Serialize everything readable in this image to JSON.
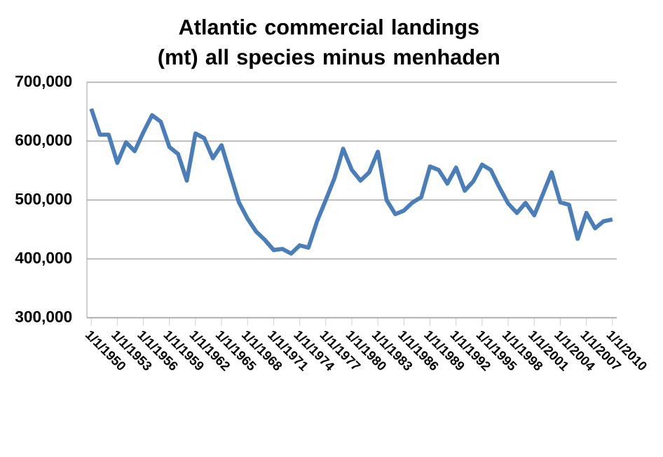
{
  "chart_data": {
    "type": "line",
    "title": "Atlantic commercial landings (mt) all species minus menhaden",
    "categories": [
      "1/1/1950",
      null,
      null,
      "1/1/1953",
      null,
      null,
      "1/1/1956",
      null,
      null,
      "1/1/1959",
      null,
      null,
      "1/1/1962",
      null,
      null,
      "1/1/1965",
      null,
      null,
      "1/1/1968",
      null,
      null,
      "1/1/1971",
      null,
      null,
      "1/1/1974",
      null,
      null,
      "1/1/1977",
      null,
      null,
      "1/1/1980",
      null,
      null,
      "1/1/1983",
      null,
      null,
      "1/1/1986",
      null,
      null,
      "1/1/1989",
      null,
      null,
      "1/1/1992",
      null,
      null,
      "1/1/1995",
      null,
      null,
      "1/1/1998",
      null,
      null,
      "1/1/2001",
      null,
      null,
      "1/1/2004",
      null,
      null,
      "1/1/2007",
      null,
      null,
      "1/1/2010"
    ],
    "series": [
      {
        "color": "#4a7ebb",
        "values": [
          655000,
          611000,
          611000,
          563000,
          598000,
          583000,
          615000,
          644000,
          633000,
          590000,
          578000,
          533000,
          613000,
          605000,
          571000,
          593000,
          544000,
          496000,
          468000,
          446000,
          432000,
          415000,
          417000,
          409000,
          423000,
          419000,
          464000,
          500000,
          537000,
          587000,
          551000,
          533000,
          547000,
          582000,
          500000,
          476000,
          482000,
          496000,
          505000,
          557000,
          551000,
          528000,
          555000,
          516000,
          532000,
          560000,
          551000,
          521000,
          494000,
          478000,
          495000,
          474000,
          510000,
          547000,
          496000,
          492000,
          434000,
          478000,
          452000,
          464000,
          467000
        ]
      }
    ],
    "ylim": [
      300000,
      700000
    ],
    "yticks": [
      {
        "value": 300000,
        "label": "300,000"
      },
      {
        "value": 400000,
        "label": "400,000"
      },
      {
        "value": 500000,
        "label": "500,000"
      },
      {
        "value": 600000,
        "label": "600,000"
      },
      {
        "value": 700000,
        "label": "700,000"
      }
    ],
    "grid": "y",
    "marker": "none",
    "line_style": "solid"
  }
}
